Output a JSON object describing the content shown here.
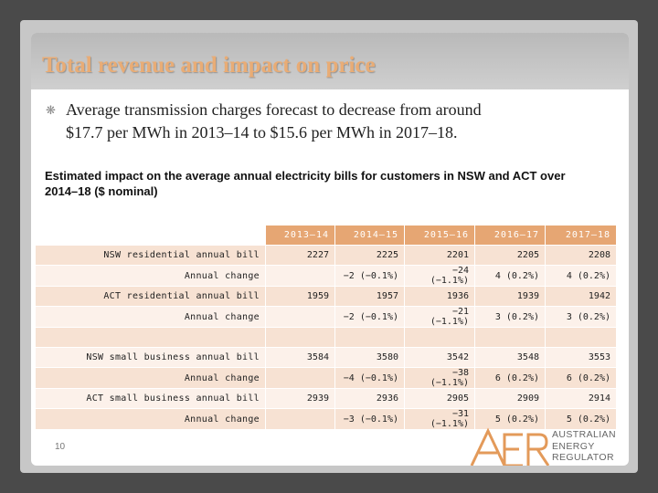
{
  "title": "Total revenue and impact on price",
  "bullet": {
    "line1": "Average transmission charges forecast to decrease from around",
    "line2": "$17.7 per MWh in 2013–14 to $15.6 per MWh in 2017–18."
  },
  "caption": {
    "line1": "Estimated impact on the average annual electricity bills for customers in NSW and ACT over",
    "line2": "2014–18 ($ nominal)"
  },
  "table": {
    "headers": [
      "2013–14",
      "2014–15",
      "2015–16",
      "2016–17",
      "2017–18"
    ],
    "rows": [
      {
        "label": "NSW residential annual bill",
        "cells": [
          "2227",
          "2225",
          "2201",
          "2205",
          "2208"
        ]
      },
      {
        "label": "Annual change",
        "cells": [
          "",
          "−2 (−0.1%)",
          "−24 (−1.1%)",
          "4 (0.2%)",
          "4 (0.2%)"
        ]
      },
      {
        "label": "ACT residential annual bill",
        "cells": [
          "1959",
          "1957",
          "1936",
          "1939",
          "1942"
        ]
      },
      {
        "label": "Annual change",
        "cells": [
          "",
          "−2 (−0.1%)",
          "−21 (−1.1%)",
          "3 (0.2%)",
          "3 (0.2%)"
        ]
      },
      {
        "label": "",
        "cells": [
          "",
          "",
          "",
          "",
          ""
        ]
      },
      {
        "label": "NSW small business annual bill",
        "cells": [
          "3584",
          "3580",
          "3542",
          "3548",
          "3553"
        ]
      },
      {
        "label": "Annual change",
        "cells": [
          "",
          "−4 (−0.1%)",
          "−38 (−1.1%)",
          "6 (0.2%)",
          "6 (0.2%)"
        ]
      },
      {
        "label": "ACT small business annual bill",
        "cells": [
          "2939",
          "2936",
          "2905",
          "2909",
          "2914"
        ]
      },
      {
        "label": "Annual change",
        "cells": [
          "",
          "−3 (−0.1%)",
          "−31 (−1.1%)",
          "5 (0.2%)",
          "5 (0.2%)"
        ]
      }
    ]
  },
  "page_number": "10",
  "logo": {
    "icon": "aer-logo-icon",
    "line1": "AUSTRALIAN",
    "line2": "ENERGY",
    "line3": "REGULATOR"
  },
  "colors": {
    "title": "#e9ac75",
    "header": "#e6a673",
    "row_odd": "#f7e2d3",
    "row_even": "#fcf1ea",
    "logo": "#e39a5a"
  }
}
